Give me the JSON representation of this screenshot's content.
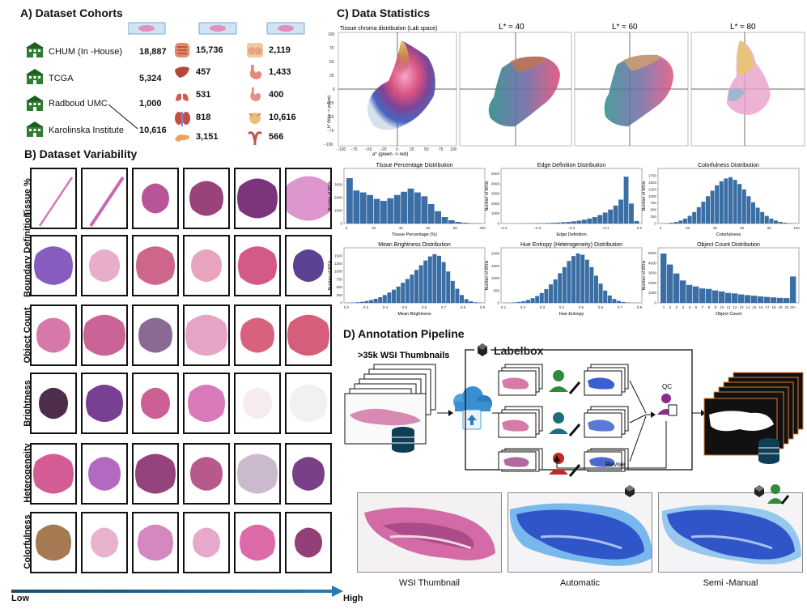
{
  "panels": {
    "a_title": "A) Dataset Cohorts",
    "b_title": "B) Dataset Variability",
    "c_title": "C) Data Statistics",
    "d_title": "D) Annotation Pipeline"
  },
  "cohorts": [
    {
      "name": "CHUM (In -House)",
      "count": "18,887"
    },
    {
      "name": "TCGA",
      "count": "5,324"
    },
    {
      "name": "Radboud UMC",
      "count": "1,000"
    },
    {
      "name": "Karolinska Institute",
      "count": "10,616"
    }
  ],
  "organs": [
    {
      "icon": "intestine-icon",
      "count": "15,736"
    },
    {
      "icon": "breast-icon",
      "count": "2,119"
    },
    {
      "icon": "liver-icon",
      "count": "457"
    },
    {
      "icon": "stomach-icon",
      "count": "1,433"
    },
    {
      "icon": "lungs-icon",
      "count": "531"
    },
    {
      "icon": "stomach-2-icon",
      "count": "400"
    },
    {
      "icon": "kidney-icon",
      "count": "818"
    },
    {
      "icon": "bladder-icon",
      "count": "10,616"
    },
    {
      "icon": "pancreas-icon",
      "count": "3,151"
    },
    {
      "icon": "uterus-icon",
      "count": "566"
    }
  ],
  "variability_rows": [
    "Tissue %",
    "Boundary Definition",
    "Object Count",
    "Brightness",
    "Heterogeneity",
    "Colorfulness"
  ],
  "axis": {
    "low": "Low",
    "high": "High"
  },
  "chroma": {
    "title": "Tissue chroma distribution (Lab space)",
    "xlabel": "a* (green -> red)",
    "ylabel": "b* (blue -> yellow)",
    "xticks": [
      "−100",
      "−75",
      "−50",
      "−25",
      "0",
      "25",
      "50",
      "75",
      "100"
    ],
    "yticks": [
      "100",
      "75",
      "50",
      "25",
      "0",
      "−25",
      "−50",
      "−75",
      "−100"
    ],
    "slices": [
      "L* ≈ 40",
      "L* ≈ 60",
      "L* ≈ 80"
    ]
  },
  "chart_data": [
    {
      "type": "bar",
      "title": "Tissue Percentage Distribution",
      "xlabel": "Tissue Percentage (%)",
      "ylabel": "Number of WSIs",
      "xlim": [
        0,
        100
      ],
      "ylim": [
        0,
        4000
      ],
      "xticks": [
        "0",
        "20",
        "40",
        "60",
        "80",
        "100"
      ],
      "yticks": [
        "0",
        "1000",
        "2000",
        "3000"
      ],
      "values": [
        3500,
        2550,
        2400,
        2200,
        1900,
        1750,
        1950,
        2200,
        2450,
        2700,
        2400,
        2100,
        1500,
        950,
        500,
        250,
        120,
        60,
        30,
        15
      ]
    },
    {
      "type": "bar",
      "title": "Edge Definition Distribution",
      "xlabel": "Edge Definition",
      "ylabel": "Number of WSIs",
      "xlim": [
        -0.4,
        0.05
      ],
      "ylim": [
        0,
        5200
      ],
      "xticks": [
        "−0.4",
        "−0.3",
        "−0.2",
        "−0.1",
        "0.0"
      ],
      "yticks": [
        "0",
        "1000",
        "2000",
        "3000",
        "4000",
        "5000"
      ],
      "values": [
        5,
        8,
        10,
        15,
        20,
        25,
        35,
        45,
        60,
        80,
        100,
        130,
        170,
        220,
        290,
        380,
        500,
        650,
        850,
        1100,
        1400,
        1800,
        2400,
        4700,
        2000,
        250
      ]
    },
    {
      "type": "bar",
      "title": "Colorfulness Distribution",
      "xlabel": "Colorfulness",
      "ylabel": "Number of WSIs",
      "xlim": [
        0,
        120
      ],
      "ylim": [
        0,
        1900
      ],
      "xticks": [
        "0",
        "20",
        "40",
        "60",
        "80",
        "100"
      ],
      "yticks": [
        "0",
        "250",
        "500",
        "750",
        "1000",
        "1250",
        "1500",
        "1750"
      ],
      "values": [
        5,
        15,
        30,
        60,
        110,
        180,
        280,
        420,
        600,
        800,
        1000,
        1200,
        1400,
        1550,
        1650,
        1700,
        1600,
        1450,
        1250,
        1000,
        780,
        580,
        420,
        280,
        180,
        110,
        60,
        30,
        15,
        5
      ]
    },
    {
      "type": "bar",
      "title": "Mean Brightness Distribution",
      "xlabel": "Mean Brightness",
      "ylabel": "Number of WSIs",
      "xlim": [
        0.15,
        0.95
      ],
      "ylim": [
        0,
        1650
      ],
      "xticks": [
        "0.2",
        "0.3",
        "0.4",
        "0.5",
        "0.6",
        "0.7",
        "0.8",
        "0.9"
      ],
      "yticks": [
        "0",
        "250",
        "500",
        "750",
        "1000",
        "1250",
        "1500"
      ],
      "values": [
        5,
        10,
        20,
        35,
        60,
        90,
        130,
        180,
        250,
        330,
        420,
        520,
        640,
        760,
        900,
        1050,
        1200,
        1350,
        1480,
        1550,
        1500,
        1300,
        1000,
        700,
        450,
        250,
        120,
        50,
        20,
        8
      ]
    },
    {
      "type": "bar",
      "title": "Hue Entropy (Heterogeneity) Distribution",
      "xlabel": "Hue Entropy",
      "ylabel": "Number of WSIs",
      "xlim": [
        0.05,
        0.85
      ],
      "ylim": [
        0,
        2100
      ],
      "xticks": [
        "0.1",
        "0.2",
        "0.3",
        "0.4",
        "0.5",
        "0.6",
        "0.7",
        "0.8"
      ],
      "yticks": [
        "0",
        "500",
        "1000",
        "1500",
        "2000"
      ],
      "values": [
        5,
        10,
        20,
        40,
        70,
        120,
        190,
        280,
        400,
        560,
        750,
        950,
        1200,
        1450,
        1700,
        1900,
        2000,
        1950,
        1750,
        1450,
        1100,
        780,
        500,
        300,
        160,
        80,
        35,
        15,
        6,
        3
      ]
    },
    {
      "type": "bar",
      "title": "Object Count Distribution",
      "xlabel": "Object Count",
      "ylabel": "Number of WSIs",
      "ylim": [
        0,
        5200
      ],
      "yticks": [
        "0",
        "1000",
        "2000",
        "3000",
        "4000",
        "5000"
      ],
      "categories": [
        "1",
        "2",
        "3",
        "4",
        "5",
        "6",
        "7",
        "8",
        "9",
        "10",
        "11",
        "12",
        "13",
        "14",
        "15",
        "16",
        "17",
        "18",
        "19",
        "20",
        "20+"
      ],
      "values": [
        4950,
        3850,
        2950,
        2250,
        1800,
        1650,
        1450,
        1400,
        1250,
        1150,
        1000,
        950,
        850,
        780,
        720,
        650,
        600,
        550,
        500,
        480,
        2650
      ]
    }
  ],
  "pipeline": {
    "thumbs_label": ">35k WSI Thumbnails",
    "labelbox": "Labelbox",
    "qc": "QC",
    "revise": "Revise",
    "captions": [
      "WSI Thumbnail",
      "Automatic",
      "Semi -Manual"
    ]
  },
  "colors": {
    "bar": "#3a6ea5",
    "tissue_pink": "#d86aa8",
    "tissue_purple": "#6a2a7a",
    "mask_blue": "#3b5fcc",
    "arrow": "#1d4f7a"
  }
}
